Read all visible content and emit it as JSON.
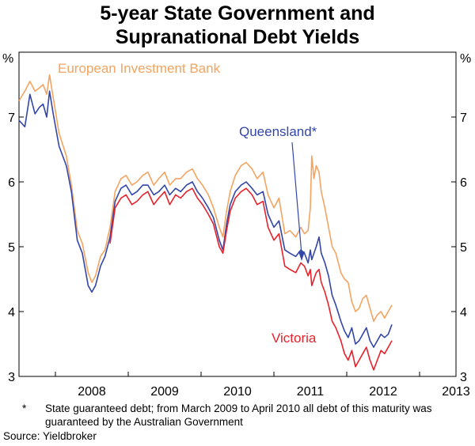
{
  "chart_data": {
    "type": "line",
    "title_line1": "5-year State Government and",
    "title_line2": "Supranational Debt Yields",
    "y_unit_left": "%",
    "y_unit_right": "%",
    "ylim": [
      3,
      8
    ],
    "yticks": [
      3,
      4,
      5,
      6,
      7
    ],
    "xlim": [
      2007.5,
      2013.5
    ],
    "xticks": [
      "2008",
      "2009",
      "2010",
      "2011",
      "2012",
      "2013"
    ],
    "grid": false,
    "legend": "inline labels",
    "footnote_marker": "*",
    "footnote": "State guaranteed debt; from March 2009 to April 2010 all debt of this maturity was guaranteed by the Australian Government",
    "source": "Source: Yieldbroker",
    "series": [
      {
        "name": "European Investment Bank",
        "color": "#F4A460",
        "x": [
          2007.5,
          2007.58,
          2007.65,
          2007.72,
          2007.78,
          2007.83,
          2007.88,
          2007.92,
          2007.97,
          2008.05,
          2008.15,
          2008.22,
          2008.3,
          2008.37,
          2008.45,
          2008.5,
          2008.55,
          2008.62,
          2008.68,
          2008.75,
          2008.82,
          2008.9,
          2008.97,
          2009.05,
          2009.12,
          2009.2,
          2009.27,
          2009.35,
          2009.42,
          2009.5,
          2009.57,
          2009.65,
          2009.72,
          2009.8,
          2009.88,
          2009.95,
          2010.02,
          2010.1,
          2010.17,
          2010.25,
          2010.3,
          2010.35,
          2010.4,
          2010.47,
          2010.55,
          2010.62,
          2010.7,
          2010.77,
          2010.85,
          2010.92,
          2011.0,
          2011.07,
          2011.15,
          2011.22,
          2011.3,
          2011.37,
          2011.42,
          2011.47,
          2011.5,
          2011.52,
          2011.55,
          2011.58,
          2011.62,
          2011.65,
          2011.7,
          2011.75,
          2011.8,
          2011.85,
          2011.92,
          2011.97,
          2012.02,
          2012.07,
          2012.12,
          2012.17,
          2012.22,
          2012.27,
          2012.32,
          2012.37,
          2012.42,
          2012.47,
          2012.52,
          2012.57,
          2012.62
        ],
        "values": [
          7.25,
          7.4,
          7.55,
          7.4,
          7.45,
          7.5,
          7.35,
          7.65,
          7.3,
          6.75,
          6.4,
          5.95,
          5.25,
          5.05,
          4.6,
          4.45,
          4.55,
          4.85,
          4.95,
          5.3,
          5.85,
          6.05,
          6.1,
          5.95,
          6.0,
          6.1,
          6.15,
          5.95,
          6.05,
          6.15,
          5.95,
          6.05,
          6.05,
          6.15,
          6.2,
          6.05,
          5.95,
          5.8,
          5.6,
          5.3,
          5.15,
          5.55,
          5.85,
          6.1,
          6.25,
          6.3,
          6.2,
          6.05,
          6.15,
          5.8,
          5.6,
          5.75,
          5.2,
          5.25,
          5.15,
          5.3,
          5.2,
          5.25,
          5.6,
          6.4,
          6.05,
          6.25,
          6.15,
          5.85,
          5.6,
          5.3,
          5.0,
          4.9,
          4.6,
          4.5,
          4.45,
          4.15,
          4.0,
          4.05,
          4.2,
          4.25,
          4.05,
          3.85,
          3.95,
          4.0,
          3.9,
          4.0,
          4.1
        ]
      },
      {
        "name": "Queensland*",
        "color": "#3346A8",
        "x": [
          2007.5,
          2007.58,
          2007.65,
          2007.72,
          2007.78,
          2007.83,
          2007.88,
          2007.92,
          2007.97,
          2008.05,
          2008.15,
          2008.22,
          2008.3,
          2008.37,
          2008.45,
          2008.5,
          2008.55,
          2008.62,
          2008.68,
          2008.75,
          2008.82,
          2008.9,
          2008.97,
          2009.05,
          2009.12,
          2009.2,
          2009.27,
          2009.35,
          2009.42,
          2009.5,
          2009.57,
          2009.65,
          2009.72,
          2009.8,
          2009.88,
          2009.95,
          2010.02,
          2010.1,
          2010.17,
          2010.25,
          2010.3,
          2010.35,
          2010.4,
          2010.47,
          2010.55,
          2010.62,
          2010.7,
          2010.77,
          2010.85,
          2010.92,
          2011.0,
          2011.07,
          2011.15,
          2011.22,
          2011.3,
          2011.37,
          2011.42,
          2011.47,
          2011.5,
          2011.52,
          2011.55,
          2011.58,
          2011.62,
          2011.65,
          2011.7,
          2011.75,
          2011.8,
          2011.85,
          2011.92,
          2011.97,
          2012.02,
          2012.07,
          2012.12,
          2012.17,
          2012.22,
          2012.27,
          2012.32,
          2012.37,
          2012.42,
          2012.47,
          2012.52,
          2012.57,
          2012.62
        ],
        "values": [
          6.95,
          6.85,
          7.35,
          7.05,
          7.15,
          7.2,
          7.0,
          7.4,
          7.05,
          6.55,
          6.25,
          5.85,
          5.1,
          4.9,
          4.4,
          4.3,
          4.4,
          4.7,
          4.85,
          5.15,
          5.7,
          5.9,
          5.95,
          5.8,
          5.85,
          5.95,
          5.95,
          5.8,
          5.85,
          5.95,
          5.8,
          5.9,
          5.85,
          5.95,
          6.0,
          5.85,
          5.75,
          5.6,
          5.45,
          5.1,
          4.95,
          5.35,
          5.65,
          5.85,
          5.95,
          6.0,
          5.9,
          5.8,
          5.85,
          5.5,
          5.3,
          5.4,
          4.95,
          4.9,
          4.85,
          4.95,
          4.9,
          4.75,
          4.95,
          4.8,
          4.9,
          5.0,
          5.15,
          4.9,
          4.75,
          4.55,
          4.25,
          4.1,
          3.85,
          3.7,
          3.6,
          3.75,
          3.5,
          3.55,
          3.65,
          3.75,
          3.55,
          3.45,
          3.55,
          3.65,
          3.6,
          3.65,
          3.8
        ]
      },
      {
        "name": "Victoria",
        "color": "#E8212B",
        "x": [
          2008.75,
          2008.82,
          2008.9,
          2008.97,
          2009.05,
          2009.12,
          2009.2,
          2009.27,
          2009.35,
          2009.42,
          2009.5,
          2009.57,
          2009.65,
          2009.72,
          2009.8,
          2009.88,
          2009.95,
          2010.02,
          2010.1,
          2010.17,
          2010.25,
          2010.3,
          2010.35,
          2010.4,
          2010.47,
          2010.55,
          2010.62,
          2010.7,
          2010.77,
          2010.85,
          2010.92,
          2011.0,
          2011.07,
          2011.15,
          2011.22,
          2011.3,
          2011.37,
          2011.42,
          2011.47,
          2011.5,
          2011.52,
          2011.55,
          2011.58,
          2011.62,
          2011.65,
          2011.7,
          2011.75,
          2011.8,
          2011.85,
          2011.92,
          2011.97,
          2012.02,
          2012.07,
          2012.12,
          2012.17,
          2012.22,
          2012.27,
          2012.32,
          2012.37,
          2012.42,
          2012.47,
          2012.52,
          2012.57,
          2012.62
        ],
        "values": [
          5.05,
          5.6,
          5.75,
          5.8,
          5.65,
          5.7,
          5.8,
          5.85,
          5.65,
          5.75,
          5.85,
          5.65,
          5.8,
          5.75,
          5.85,
          5.9,
          5.75,
          5.65,
          5.5,
          5.35,
          5.0,
          4.9,
          5.25,
          5.55,
          5.75,
          5.85,
          5.9,
          5.8,
          5.65,
          5.7,
          5.3,
          5.1,
          5.2,
          4.7,
          4.65,
          4.6,
          4.75,
          4.7,
          4.55,
          4.65,
          4.4,
          4.5,
          4.6,
          4.65,
          4.45,
          4.3,
          4.1,
          3.85,
          3.75,
          3.55,
          3.35,
          3.25,
          3.4,
          3.15,
          3.25,
          3.35,
          3.45,
          3.25,
          3.1,
          3.25,
          3.4,
          3.35,
          3.45,
          3.55
        ]
      }
    ]
  }
}
